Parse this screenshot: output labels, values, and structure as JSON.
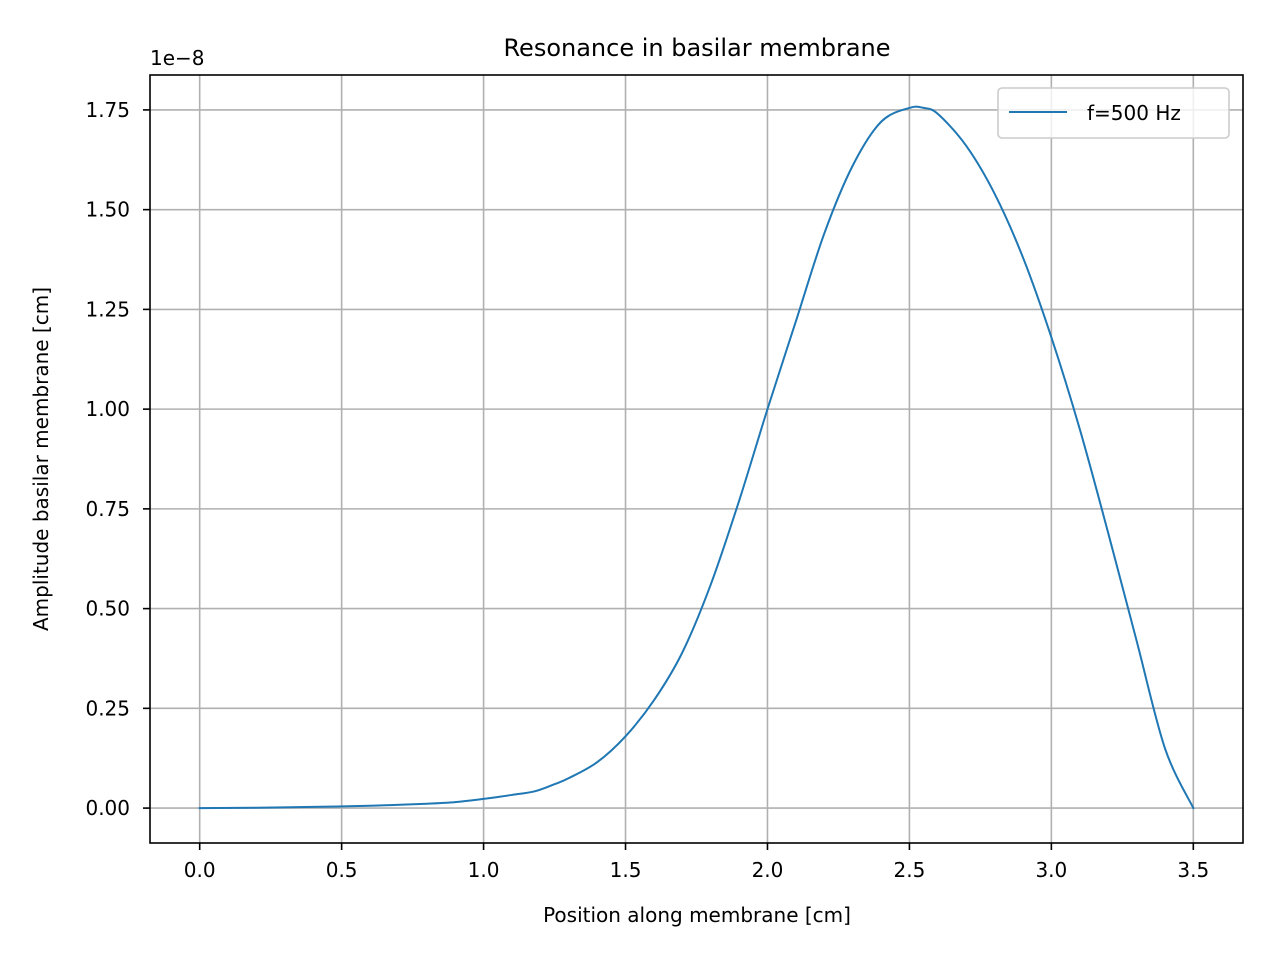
{
  "chart_data": {
    "type": "line",
    "title": "Resonance in basilar membrane",
    "xlabel": "Position along membrane [cm]",
    "ylabel": "Amplitude basilar membrane [cm]",
    "y_offset_label": "1e−8",
    "xlim": [
      -0.175,
      3.675
    ],
    "ylim": [
      -0.0875,
      1.8375
    ],
    "x_ticks": [
      0.0,
      0.5,
      1.0,
      1.5,
      2.0,
      2.5,
      3.0,
      3.5
    ],
    "x_tick_labels": [
      "0.0",
      "0.5",
      "1.0",
      "1.5",
      "2.0",
      "2.5",
      "3.0",
      "3.5"
    ],
    "y_ticks": [
      0.0,
      0.25,
      0.5,
      0.75,
      1.0,
      1.25,
      1.5,
      1.75
    ],
    "y_tick_labels": [
      "0.00",
      "0.25",
      "0.50",
      "0.75",
      "1.00",
      "1.25",
      "1.50",
      "1.75"
    ],
    "grid": true,
    "legend_position": "top-right",
    "series": [
      {
        "name": "f=500 Hz",
        "color": "#1f77b4",
        "x": [
          0.0,
          0.2,
          0.4,
          0.6,
          0.8,
          0.9,
          1.0,
          1.1,
          1.18,
          1.25,
          1.3,
          1.4,
          1.5,
          1.6,
          1.7,
          1.8,
          1.9,
          2.0,
          2.1,
          2.2,
          2.3,
          2.4,
          2.5,
          2.55,
          2.6,
          2.7,
          2.8,
          2.9,
          3.0,
          3.1,
          3.2,
          3.3,
          3.4,
          3.5
        ],
        "y": [
          0.0,
          0.001,
          0.003,
          0.006,
          0.011,
          0.015,
          0.023,
          0.033,
          0.042,
          0.06,
          0.075,
          0.115,
          0.18,
          0.27,
          0.39,
          0.56,
          0.77,
          1.0,
          1.22,
          1.44,
          1.61,
          1.72,
          1.755,
          1.755,
          1.74,
          1.66,
          1.54,
          1.38,
          1.18,
          0.95,
          0.69,
          0.42,
          0.15,
          0.0
        ]
      }
    ]
  }
}
